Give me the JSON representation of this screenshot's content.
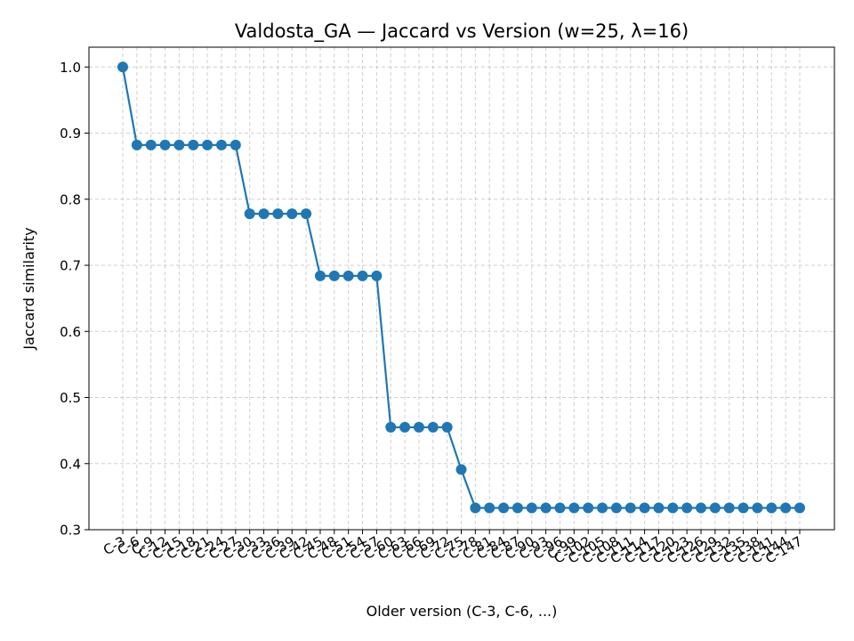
{
  "chart_data": {
    "type": "line",
    "title": "Valdosta_GA — Jaccard vs Version (w=25, λ=16)",
    "xlabel": "Older version (C-3, C-6, ...)",
    "ylabel": "Jaccard similarity",
    "ylim": [
      0.3,
      1.03
    ],
    "yticks": [
      0.3,
      0.4,
      0.5,
      0.6,
      0.7,
      0.8,
      0.9,
      1.0
    ],
    "grid": true,
    "series_color": "#1f77b4",
    "categories": [
      "C-3",
      "C-6",
      "C-9",
      "C-12",
      "C-15",
      "C-18",
      "C-21",
      "C-24",
      "C-27",
      "C-30",
      "C-33",
      "C-36",
      "C-39",
      "C-42",
      "C-45",
      "C-48",
      "C-51",
      "C-54",
      "C-57",
      "C-60",
      "C-63",
      "C-66",
      "C-69",
      "C-72",
      "C-75",
      "C-78",
      "C-81",
      "C-84",
      "C-87",
      "C-90",
      "C-93",
      "C-96",
      "C-99",
      "C-102",
      "C-105",
      "C-108",
      "C-111",
      "C-114",
      "C-117",
      "C-120",
      "C-123",
      "C-126",
      "C-129",
      "C-132",
      "C-135",
      "C-138",
      "C-141",
      "C-144",
      "C-147"
    ],
    "values": [
      1.0,
      0.882,
      0.882,
      0.882,
      0.882,
      0.882,
      0.882,
      0.882,
      0.882,
      0.778,
      0.778,
      0.778,
      0.778,
      0.778,
      0.684,
      0.684,
      0.684,
      0.684,
      0.684,
      0.455,
      0.455,
      0.455,
      0.455,
      0.455,
      0.391,
      0.333,
      0.333,
      0.333,
      0.333,
      0.333,
      0.333,
      0.333,
      0.333,
      0.333,
      0.333,
      0.333,
      0.333,
      0.333,
      0.333,
      0.333,
      0.333,
      0.333,
      0.333,
      0.333,
      0.333,
      0.333,
      0.333,
      0.333,
      0.333
    ]
  }
}
